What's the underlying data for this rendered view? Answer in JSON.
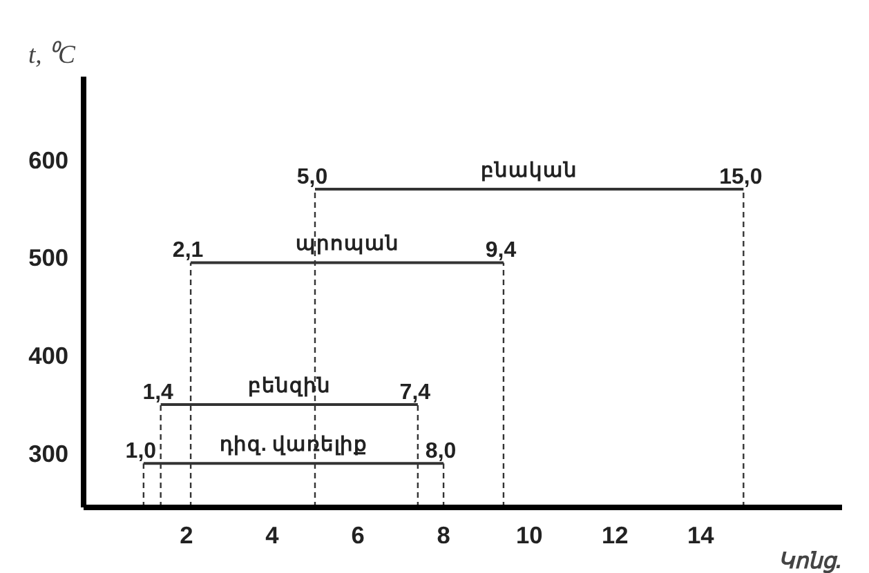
{
  "chart_data": {
    "type": "line",
    "xlabel": "Կոնց.",
    "ylabel": "t, ⁰C",
    "xlim": [
      -0.4,
      17.3
    ],
    "ylim": [
      245,
      685
    ],
    "xticks": [
      2,
      4,
      6,
      8,
      10,
      12,
      14
    ],
    "yticks": [
      300,
      400,
      500,
      600
    ],
    "grid": false,
    "marker": "none",
    "line_style": "solid",
    "color": "#000000",
    "series": [
      {
        "name": "բնական",
        "x": [
          5.0,
          15.0
        ],
        "values": [
          570,
          570
        ],
        "color": "#333333"
      },
      {
        "name": "պրոպան",
        "x": [
          2.1,
          9.4
        ],
        "values": [
          495,
          495
        ],
        "color": "#333333"
      },
      {
        "name": "բենզին",
        "x": [
          1.4,
          7.4
        ],
        "values": [
          350,
          350
        ],
        "color": "#333333"
      },
      {
        "name": "դիզ. վառելիք",
        "x": [
          1.0,
          8.0
        ],
        "values": [
          290,
          290
        ],
        "color": "#333333"
      },
      {
        "x": [
          5.0,
          5.0
        ],
        "values": [
          245,
          570
        ],
        "color": "#333333",
        "line_style": "dashed"
      },
      {
        "x": [
          15.0,
          15.0
        ],
        "values": [
          245,
          570
        ],
        "color": "#333333",
        "line_style": "dashed"
      },
      {
        "x": [
          2.1,
          2.1
        ],
        "values": [
          245,
          495
        ],
        "color": "#333333",
        "line_style": "dashed"
      },
      {
        "x": [
          9.4,
          9.4
        ],
        "values": [
          245,
          495
        ],
        "color": "#333333",
        "line_style": "dashed"
      },
      {
        "x": [
          1.4,
          1.4
        ],
        "values": [
          245,
          350
        ],
        "color": "#333333",
        "line_style": "dashed"
      },
      {
        "x": [
          7.4,
          7.4
        ],
        "values": [
          245,
          350
        ],
        "color": "#333333",
        "line_style": "dashed"
      },
      {
        "x": [
          1.0,
          1.0
        ],
        "values": [
          245,
          290
        ],
        "color": "#333333",
        "line_style": "dashed"
      },
      {
        "x": [
          8.0,
          8.0
        ],
        "values": [
          245,
          290
        ],
        "color": "#333333",
        "line_style": "dashed"
      }
    ],
    "annotations": [
      {
        "text": "5,0",
        "x": 5.0,
        "y": 570
      },
      {
        "text": "15,0",
        "x": 15.0,
        "y": 570
      },
      {
        "text": "2,1",
        "x": 2.1,
        "y": 495
      },
      {
        "text": "9,4",
        "x": 9.4,
        "y": 495
      },
      {
        "text": "1,4",
        "x": 1.4,
        "y": 350
      },
      {
        "text": "7,4",
        "x": 7.4,
        "y": 350
      },
      {
        "text": "1,0",
        "x": 1.0,
        "y": 290
      },
      {
        "text": "8,0",
        "x": 8.0,
        "y": 290
      }
    ]
  }
}
